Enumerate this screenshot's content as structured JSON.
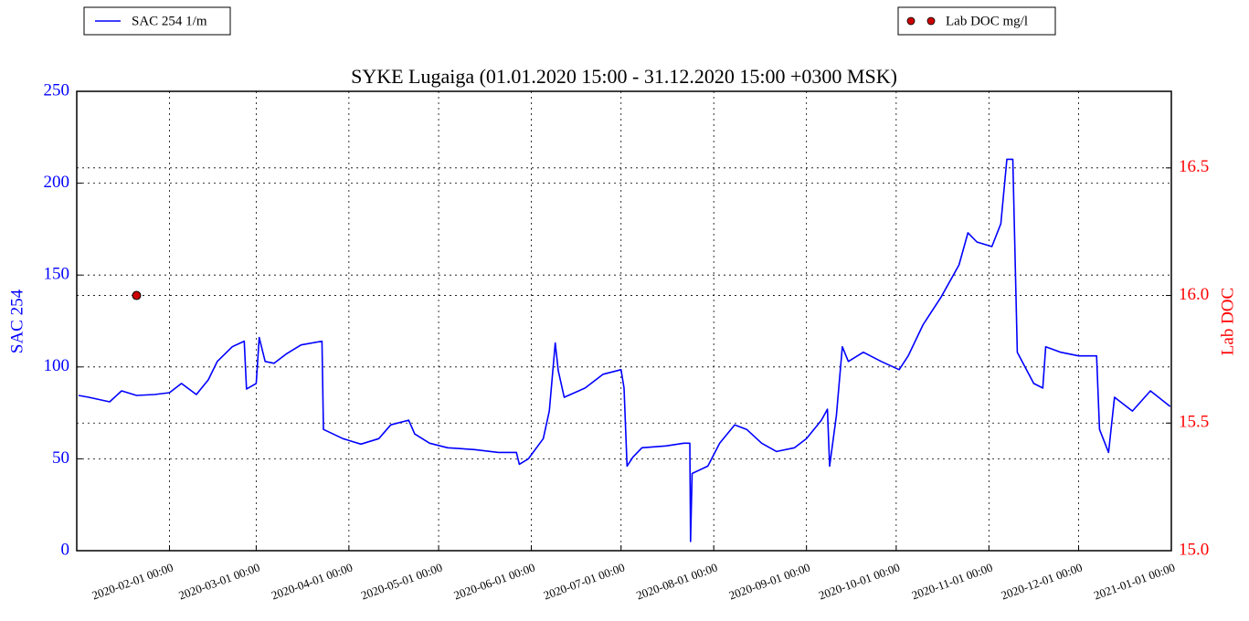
{
  "chart_data": {
    "type": "line",
    "title": "SYKE Lugaiga (01.01.2020 15:00 - 31.12.2020 15:00 +0300 MSK)",
    "ylabel": "SAC 254",
    "y2label": "Lab DOC",
    "xlim": [
      "2020-01-01 00:00",
      "2021-01-01 00:00"
    ],
    "xticks": [
      "2020-02-01 00:00",
      "2020-03-01 00:00",
      "2020-04-01 00:00",
      "2020-05-01 00:00",
      "2020-06-01 00:00",
      "2020-07-01 00:00",
      "2020-08-01 00:00",
      "2020-09-01 00:00",
      "2020-10-01 00:00",
      "2020-11-01 00:00",
      "2020-12-01 00:00",
      "2021-01-01 00:00"
    ],
    "ylim": [
      0,
      250
    ],
    "yticks": [
      0,
      50,
      100,
      150,
      200,
      250
    ],
    "y2lim": [
      15,
      16.8
    ],
    "y2ticks": [
      {
        "value": 15,
        "label": "15.0"
      },
      15.5,
      {
        "value": 16,
        "label": "16.0"
      },
      16.5
    ],
    "grid": true,
    "series": [
      {
        "name": "SAC 254 1/m",
        "type": "line",
        "color": "#0000ff",
        "x": [
          "2020-01-01 15:00",
          "2020-01-05 00:00",
          "2020-01-12 00:00",
          "2020-01-16 00:00",
          "2020-01-21 00:00",
          "2020-01-27 00:00",
          "2020-02-01 00:00",
          "2020-02-05 00:00",
          "2020-02-10 00:00",
          "2020-02-14 00:00",
          "2020-02-17 00:00",
          "2020-02-22 00:00",
          "2020-02-26 00:00",
          "2020-02-26 18:00",
          "2020-03-01 00:00",
          "2020-03-02 00:00",
          "2020-03-04 00:00",
          "2020-03-07 00:00",
          "2020-03-11 00:00",
          "2020-03-16 00:00",
          "2020-03-23 00:00",
          "2020-03-23 12:00",
          "2020-03-30 00:00",
          "2020-04-05 00:00",
          "2020-04-11 00:00",
          "2020-04-15 00:00",
          "2020-04-21 00:00",
          "2020-04-23 00:00",
          "2020-04-28 00:00",
          "2020-05-04 00:00",
          "2020-05-13 00:00",
          "2020-05-21 00:00",
          "2020-05-27 00:00",
          "2020-05-28 00:00",
          "2020-05-31 00:00",
          "2020-06-05 00:00",
          "2020-06-07 00:00",
          "2020-06-09 00:00",
          "2020-06-10 00:00",
          "2020-06-12 00:00",
          "2020-06-19 00:00",
          "2020-06-25 00:00",
          "2020-07-01 00:00",
          "2020-07-02 00:00",
          "2020-07-03 00:00",
          "2020-07-05 00:00",
          "2020-07-08 00:00",
          "2020-07-16 00:00",
          "2020-07-22 00:00",
          "2020-07-24 00:00",
          "2020-07-24 06:00",
          "2020-07-24 18:00",
          "2020-07-30 00:00",
          "2020-08-03 00:00",
          "2020-08-08 00:00",
          "2020-08-12 00:00",
          "2020-08-17 00:00",
          "2020-08-22 00:00",
          "2020-08-28 00:00",
          "2020-09-01 00:00",
          "2020-09-06 00:00",
          "2020-09-08 00:00",
          "2020-09-08 18:00",
          "2020-09-11 00:00",
          "2020-09-13 00:00",
          "2020-09-15 00:00",
          "2020-09-20 00:00",
          "2020-09-26 00:00",
          "2020-10-02 00:00",
          "2020-10-05 00:00",
          "2020-10-10 00:00",
          "2020-10-16 00:00",
          "2020-10-22 00:00",
          "2020-10-25 00:00",
          "2020-10-28 00:00",
          "2020-11-02 00:00",
          "2020-11-05 00:00",
          "2020-11-07 00:00",
          "2020-11-09 00:00",
          "2020-11-10 12:00",
          "2020-11-16 00:00",
          "2020-11-19 00:00",
          "2020-11-20 00:00",
          "2020-11-25 00:00",
          "2020-12-01 00:00",
          "2020-12-07 00:00",
          "2020-12-08 00:00",
          "2020-12-11 00:00",
          "2020-12-13 00:00",
          "2020-12-19 00:00",
          "2020-12-25 00:00",
          "2020-12-31 15:00"
        ],
        "values": [
          84.5,
          83.5,
          81,
          87,
          84.5,
          85,
          86,
          91,
          85,
          93,
          103,
          111,
          114,
          88,
          91,
          116,
          103,
          102,
          107,
          112,
          114,
          66,
          61,
          58,
          61,
          68.5,
          71,
          63.5,
          58.5,
          56,
          55,
          53.5,
          53.5,
          47,
          50,
          61,
          76,
          113,
          98,
          83.5,
          88.5,
          96,
          98.5,
          88.5,
          46,
          51,
          56,
          57,
          58.5,
          58.5,
          5,
          42,
          46,
          58.5,
          68.5,
          66,
          58.5,
          54,
          56,
          61,
          71,
          77,
          46,
          73.5,
          111,
          103,
          108,
          103,
          98.5,
          106,
          123,
          138,
          155.5,
          173,
          168,
          165.5,
          178,
          213,
          213,
          108,
          91,
          88.5,
          111,
          108,
          106,
          106,
          66,
          53.5,
          83.5,
          76,
          87,
          78.5
        ]
      },
      {
        "name": "Lab DOC mg/l",
        "type": "scatter",
        "axis": "y2",
        "color": "#cc0000",
        "x": [
          "2020-01-21 00:00"
        ],
        "values": [
          16
        ]
      }
    ]
  }
}
